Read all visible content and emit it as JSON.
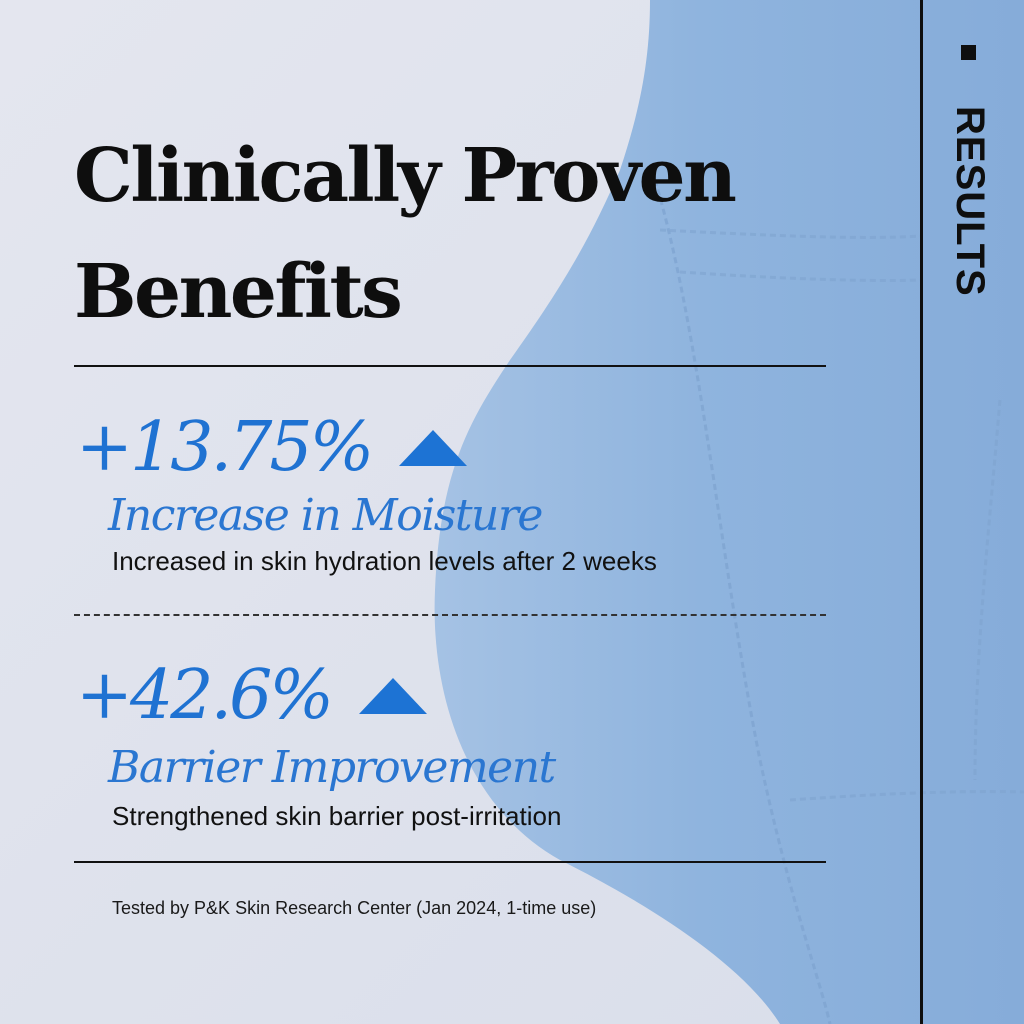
{
  "title": "Clinically Proven Benefits",
  "side_label": "RESULTS",
  "stats": [
    {
      "value": "+13.75%",
      "heading": "Increase in Moisture",
      "description": "Increased in skin hydration levels after 2 weeks",
      "icon": "triangle-up-icon"
    },
    {
      "value": "+42.6%",
      "heading": "Barrier Improvement",
      "description": "Strengthened skin barrier post-irritation",
      "icon": "triangle-up-icon"
    }
  ],
  "footnote": "Tested by P&K Skin Research Center (Jan 2024, 1-time use)",
  "colors": {
    "accent": "#1f72d2",
    "text": "#0e0e0e",
    "background": "#dfe3ee",
    "garment": "#8eb2dc"
  }
}
